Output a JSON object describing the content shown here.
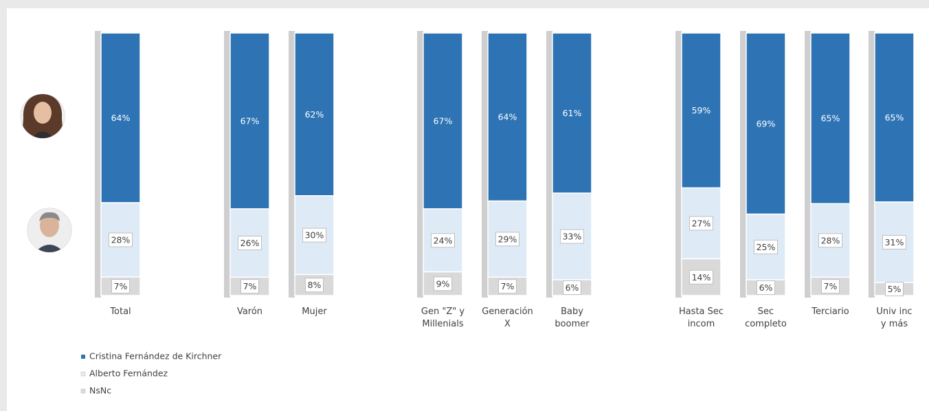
{
  "chart_data": {
    "type": "bar",
    "stacked": true,
    "normalized": true,
    "categories": [
      [
        "Total"
      ],
      [
        "Varón"
      ],
      [
        "Mujer"
      ],
      [
        "Gen \"Z\" y",
        "Millenials"
      ],
      [
        "Generación",
        "X"
      ],
      [
        "Baby",
        "boomer"
      ],
      [
        "Hasta Sec",
        "incom"
      ],
      [
        "Sec",
        "completo"
      ],
      [
        "Terciario"
      ],
      [
        "Univ inc",
        "y más"
      ]
    ],
    "series": [
      {
        "name": "Cristina Fernández de Kirchner",
        "color": "#2e74b5",
        "values": [
          64,
          67,
          62,
          67,
          64,
          61,
          59,
          69,
          65,
          65
        ],
        "labels": [
          "64%",
          "67%",
          "62%",
          "67%",
          "64%",
          "61%",
          "59%",
          "69%",
          "65%",
          "65%"
        ]
      },
      {
        "name": "Alberto Fernández",
        "color": "#deebf7",
        "values": [
          28,
          26,
          30,
          24,
          29,
          33,
          27,
          25,
          28,
          31
        ],
        "labels": [
          "28%",
          "26%",
          "30%",
          "24%",
          "29%",
          "33%",
          "27%",
          "25%",
          "28%",
          "31%"
        ]
      },
      {
        "name": "NsNc",
        "color": "#d9d9d9",
        "values": [
          7,
          7,
          8,
          9,
          7,
          6,
          14,
          6,
          7,
          5
        ],
        "labels": [
          "7%",
          "7%",
          "8%",
          "9%",
          "7%",
          "6%",
          "14%",
          "6%",
          "7%",
          "5%"
        ]
      }
    ],
    "legend": "bottom-left",
    "grid": false,
    "icons": [
      "cristina-avatar-icon",
      "alberto-avatar-icon"
    ]
  }
}
